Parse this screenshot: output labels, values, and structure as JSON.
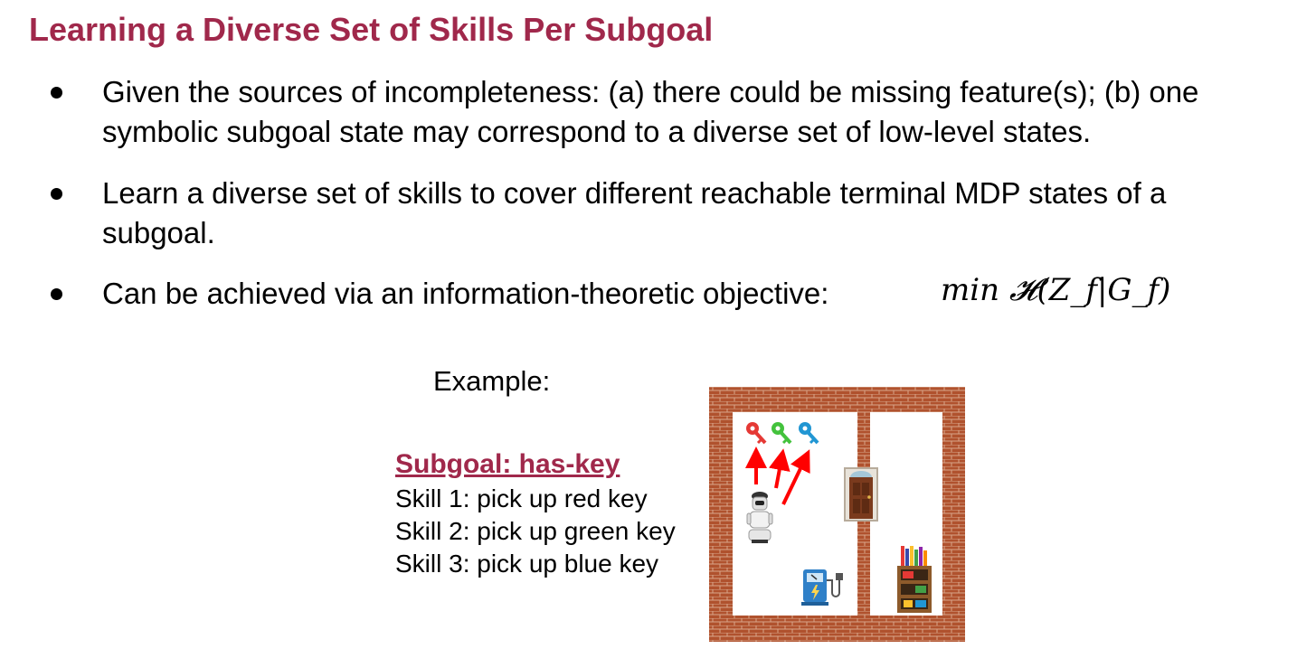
{
  "slide": {
    "title": "Learning a Diverse Set of Skills Per Subgoal",
    "bullets": [
      {
        "line1": "Given the sources of incompleteness: (a) there could be missing feature(s); (b) one",
        "line2": "symbolic subgoal state may correspond to a diverse set of low-level states."
      },
      {
        "line1": "Learn a diverse set of skills to cover different reachable terminal MDP states of a",
        "line2": "subgoal."
      },
      {
        "line1": "Can be achieved via an information-theoretic objective:",
        "formula": "min 𝓗(Z_f|G_f)"
      }
    ],
    "example": {
      "label": "Example:",
      "subgoal": "Subgoal: has-key",
      "skills": [
        "Skill 1: pick up red key",
        "Skill 2: pick up green key",
        "Skill 3: pick up blue key"
      ]
    }
  },
  "scene": {
    "keys": [
      {
        "color": "#e53935",
        "icon": "red-key-icon"
      },
      {
        "color": "#43c23c",
        "icon": "green-key-icon"
      },
      {
        "color": "#2196d3",
        "icon": "blue-key-icon"
      }
    ],
    "brick_color": "#b0522e",
    "arrow_color": "#ff0000"
  }
}
